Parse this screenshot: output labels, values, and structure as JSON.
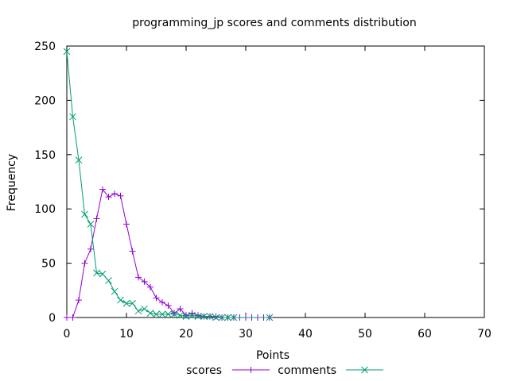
{
  "chart_data": {
    "type": "line",
    "title": "programming_jp scores and comments distribution",
    "xlabel": "Points",
    "ylabel": "Frequency",
    "xlim": [
      0,
      70
    ],
    "ylim": [
      0,
      250
    ],
    "xticks": [
      0,
      10,
      20,
      30,
      40,
      50,
      60,
      70
    ],
    "yticks": [
      0,
      50,
      100,
      150,
      200,
      250
    ],
    "xtick_labels": [
      "0",
      "10",
      "20",
      "30",
      "40",
      "50",
      "60",
      "70"
    ],
    "ytick_labels": [
      "0",
      "50",
      "100",
      "150",
      "200",
      "250"
    ],
    "grid": false,
    "legend_position": "bottom-center",
    "series": [
      {
        "name": "scores",
        "color": "#9400D3",
        "marker": "plus",
        "points": [
          [
            0,
            0
          ],
          [
            1,
            0
          ],
          [
            2,
            16
          ],
          [
            3,
            50
          ],
          [
            4,
            63
          ],
          [
            5,
            91
          ],
          [
            6,
            118
          ],
          [
            7,
            111
          ],
          [
            8,
            114
          ],
          [
            9,
            112
          ],
          [
            10,
            86
          ],
          [
            11,
            61
          ],
          [
            12,
            37
          ],
          [
            13,
            33
          ],
          [
            14,
            28
          ],
          [
            15,
            18
          ],
          [
            16,
            14
          ],
          [
            17,
            11
          ],
          [
            18,
            4
          ],
          [
            19,
            8
          ],
          [
            20,
            2
          ],
          [
            21,
            4
          ],
          [
            22,
            2
          ],
          [
            23,
            1
          ],
          [
            24,
            1
          ],
          [
            25,
            1
          ],
          [
            26,
            0
          ],
          [
            27,
            0
          ],
          [
            28,
            0
          ],
          [
            29,
            0
          ],
          [
            30,
            0
          ],
          [
            31,
            0
          ],
          [
            32,
            0
          ],
          [
            33,
            0
          ],
          [
            34,
            0
          ]
        ]
      },
      {
        "name": "comments",
        "color": "#009E73",
        "marker": "x",
        "points": [
          [
            0,
            245
          ],
          [
            1,
            185
          ],
          [
            2,
            145
          ],
          [
            3,
            95
          ],
          [
            4,
            86
          ],
          [
            5,
            41
          ],
          [
            6,
            40
          ],
          [
            7,
            34
          ],
          [
            8,
            24
          ],
          [
            9,
            16
          ],
          [
            10,
            13
          ],
          [
            11,
            13
          ],
          [
            12,
            6
          ],
          [
            13,
            8
          ],
          [
            14,
            4
          ],
          [
            15,
            3
          ],
          [
            16,
            3
          ],
          [
            17,
            3
          ],
          [
            18,
            3
          ],
          [
            19,
            2
          ],
          [
            20,
            1
          ],
          [
            21,
            2
          ],
          [
            22,
            1
          ],
          [
            23,
            1
          ],
          [
            24,
            1
          ],
          [
            25,
            0
          ],
          [
            26,
            0
          ],
          [
            27,
            0
          ],
          [
            28,
            0
          ],
          [
            34,
            0
          ]
        ]
      }
    ]
  }
}
